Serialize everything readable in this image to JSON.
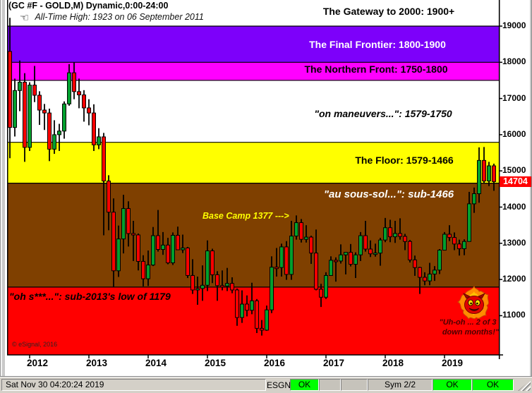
{
  "window": {
    "title": "(GC #F - GOLD,M) Dynamic,0:00-24:00",
    "subtitle": "All-Time High:  1923 on 06 September 2011",
    "subtitle_icon": "pointing-hand-left-icon"
  },
  "zones": [
    {
      "id": "gateway",
      "label": "The Gateway to 2000:  1900+",
      "price_from": 1900,
      "price_to": null,
      "bg": "#FFFFFF",
      "text_color": "#000000"
    },
    {
      "id": "final-frontier",
      "label": "The Final Frontier:  1800-1900",
      "price_from": 1800,
      "price_to": 1900,
      "bg": "#7D00FA",
      "text_color": "#FFFFFF"
    },
    {
      "id": "northern-front",
      "label": "The Northern Front:  1750-1800",
      "price_from": 1750,
      "price_to": 1800,
      "bg": "#FF00FF",
      "text_color": "#000000"
    },
    {
      "id": "maneuvers",
      "label": "\"on maneuvers...\":  1579-1750",
      "price_from": 1579,
      "price_to": 1750,
      "bg": "#FFFFFF",
      "text_color": "#000000"
    },
    {
      "id": "floor",
      "label": "The Floor:  1579-1466",
      "price_from": 1466,
      "price_to": 1579,
      "bg": "#FFFF00",
      "text_color": "#000000"
    },
    {
      "id": "sous-sol",
      "label": "\"au sous-sol...\":  sub-1466",
      "price_from": 1179,
      "price_to": 1466,
      "bg": "#7F4000",
      "text_color": "#FFFFFF"
    },
    {
      "id": "oh-s",
      "label": "\"oh s***...\":  sub-2013's low of 1179",
      "price_from": null,
      "price_to": 1179,
      "bg": "#FF0000",
      "text_color": "#000000"
    }
  ],
  "annotations": {
    "base_camp": "Base Camp 1377 --->",
    "copyright": "© eSignal, 2016",
    "uh_oh_line1": "\"Uh-oh ... 2 of 3",
    "uh_oh_line2": "down months!\"",
    "last_price": "14704"
  },
  "y_axis": {
    "ticks": [
      19000,
      18000,
      17000,
      16000,
      15000,
      14000,
      13000,
      12000,
      11000
    ]
  },
  "x_axis": {
    "years": [
      "2012",
      "2013",
      "2014",
      "2015",
      "2016",
      "2017",
      "2018",
      "2019"
    ]
  },
  "status_bar": {
    "timestamp": "Sat Nov 30 04:20:24 2019",
    "feed_label": "ESGNL:",
    "feed_status": "OK",
    "sym": "Sym 2/2",
    "status2": "OK",
    "status3": "OK",
    "ok_color": "#00FF00"
  },
  "chart_data": {
    "type": "candlestick",
    "title": "(GC #F - GOLD,M) Dynamic,0:00-24:00",
    "symbol": "GC #F GOLD, monthly",
    "price_scale_factor": 10,
    "ylim": [
      990,
      1972
    ],
    "y_tick_labels": [
      19000,
      18000,
      17000,
      16000,
      15000,
      14000,
      13000,
      12000,
      11000
    ],
    "x_tick_labels": [
      "2012",
      "2013",
      "2014",
      "2015",
      "2016",
      "2017",
      "2018",
      "2019"
    ],
    "up_color": "#00A02E",
    "down_color": "#FF0000",
    "last_price": 1470.4,
    "candles": [
      [
        "2011-09",
        1830,
        1923,
        1535,
        1620
      ],
      [
        "2011-10",
        1620,
        1755,
        1595,
        1722
      ],
      [
        "2011-11",
        1722,
        1805,
        1665,
        1745
      ],
      [
        "2011-12",
        1745,
        1770,
        1525,
        1565
      ],
      [
        "2012-01",
        1565,
        1745,
        1555,
        1737
      ],
      [
        "2012-02",
        1737,
        1790,
        1690,
        1709
      ],
      [
        "2012-03",
        1709,
        1720,
        1627,
        1668
      ],
      [
        "2012-04",
        1668,
        1685,
        1613,
        1660
      ],
      [
        "2012-05",
        1660,
        1672,
        1527,
        1560
      ],
      [
        "2012-06",
        1560,
        1640,
        1547,
        1600
      ],
      [
        "2012-07",
        1600,
        1630,
        1555,
        1610
      ],
      [
        "2012-08",
        1610,
        1692,
        1589,
        1685
      ],
      [
        "2012-09",
        1685,
        1795,
        1680,
        1771
      ],
      [
        "2012-10",
        1771,
        1800,
        1698,
        1719
      ],
      [
        "2012-11",
        1719,
        1755,
        1673,
        1710
      ],
      [
        "2012-12",
        1710,
        1723,
        1636,
        1674
      ],
      [
        "2013-01",
        1674,
        1698,
        1626,
        1660
      ],
      [
        "2013-02",
        1660,
        1684,
        1555,
        1572
      ],
      [
        "2013-03",
        1572,
        1618,
        1560,
        1594
      ],
      [
        "2013-04",
        1594,
        1605,
        1322,
        1472
      ],
      [
        "2013-05",
        1472,
        1488,
        1336,
        1386
      ],
      [
        "2013-06",
        1386,
        1424,
        1179,
        1224
      ],
      [
        "2013-07",
        1224,
        1349,
        1207,
        1312
      ],
      [
        "2013-08",
        1312,
        1434,
        1272,
        1396
      ],
      [
        "2013-09",
        1396,
        1416,
        1291,
        1327
      ],
      [
        "2013-10",
        1327,
        1362,
        1251,
        1323
      ],
      [
        "2013-11",
        1323,
        1327,
        1225,
        1250
      ],
      [
        "2013-12",
        1250,
        1267,
        1181,
        1202
      ],
      [
        "2014-01",
        1202,
        1280,
        1182,
        1240
      ],
      [
        "2014-02",
        1240,
        1345,
        1237,
        1321
      ],
      [
        "2014-03",
        1321,
        1392,
        1277,
        1283
      ],
      [
        "2014-04",
        1283,
        1331,
        1268,
        1295
      ],
      [
        "2014-05",
        1295,
        1315,
        1242,
        1246
      ],
      [
        "2014-06",
        1246,
        1330,
        1240,
        1322
      ],
      [
        "2014-07",
        1322,
        1346,
        1281,
        1282
      ],
      [
        "2014-08",
        1282,
        1324,
        1273,
        1287
      ],
      [
        "2014-09",
        1287,
        1290,
        1204,
        1211
      ],
      [
        "2014-10",
        1211,
        1256,
        1160,
        1171
      ],
      [
        "2014-11",
        1171,
        1208,
        1130,
        1175
      ],
      [
        "2014-12",
        1175,
        1239,
        1141,
        1184
      ],
      [
        "2015-01",
        1184,
        1308,
        1168,
        1279
      ],
      [
        "2015-02",
        1279,
        1285,
        1190,
        1213
      ],
      [
        "2015-03",
        1213,
        1223,
        1141,
        1183
      ],
      [
        "2015-04",
        1183,
        1225,
        1170,
        1182
      ],
      [
        "2015-05",
        1182,
        1232,
        1168,
        1189
      ],
      [
        "2015-06",
        1189,
        1206,
        1162,
        1171
      ],
      [
        "2015-07",
        1171,
        1175,
        1072,
        1095
      ],
      [
        "2015-08",
        1095,
        1170,
        1080,
        1132
      ],
      [
        "2015-09",
        1132,
        1156,
        1098,
        1115
      ],
      [
        "2015-10",
        1115,
        1191,
        1104,
        1141
      ],
      [
        "2015-11",
        1141,
        1146,
        1052,
        1065
      ],
      [
        "2015-12",
        1065,
        1088,
        1045,
        1060
      ],
      [
        "2016-01",
        1060,
        1128,
        1058,
        1116
      ],
      [
        "2016-02",
        1116,
        1264,
        1107,
        1234
      ],
      [
        "2016-03",
        1234,
        1287,
        1208,
        1233
      ],
      [
        "2016-04",
        1233,
        1299,
        1208,
        1290
      ],
      [
        "2016-05",
        1290,
        1306,
        1199,
        1214
      ],
      [
        "2016-06",
        1214,
        1362,
        1199,
        1320
      ],
      [
        "2016-07",
        1320,
        1377,
        1310,
        1357
      ],
      [
        "2016-08",
        1357,
        1367,
        1302,
        1311
      ],
      [
        "2016-09",
        1311,
        1350,
        1302,
        1317
      ],
      [
        "2016-10",
        1317,
        1321,
        1243,
        1273
      ],
      [
        "2016-11",
        1273,
        1338,
        1170,
        1173
      ],
      [
        "2016-12",
        1173,
        1188,
        1124,
        1151
      ],
      [
        "2017-01",
        1151,
        1220,
        1146,
        1211
      ],
      [
        "2017-02",
        1211,
        1264,
        1210,
        1253
      ],
      [
        "2017-03",
        1253,
        1261,
        1194,
        1251
      ],
      [
        "2017-04",
        1251,
        1297,
        1244,
        1268
      ],
      [
        "2017-05",
        1268,
        1273,
        1214,
        1275
      ],
      [
        "2017-06",
        1275,
        1298,
        1236,
        1242
      ],
      [
        "2017-07",
        1242,
        1275,
        1204,
        1268
      ],
      [
        "2017-08",
        1268,
        1331,
        1251,
        1321
      ],
      [
        "2017-09",
        1321,
        1362,
        1277,
        1284
      ],
      [
        "2017-10",
        1284,
        1308,
        1262,
        1271
      ],
      [
        "2017-11",
        1271,
        1299,
        1263,
        1273
      ],
      [
        "2017-12",
        1273,
        1315,
        1238,
        1309
      ],
      [
        "2018-01",
        1309,
        1370,
        1303,
        1343
      ],
      [
        "2018-02",
        1343,
        1365,
        1303,
        1318
      ],
      [
        "2018-03",
        1318,
        1362,
        1301,
        1327
      ],
      [
        "2018-04",
        1327,
        1369,
        1310,
        1319
      ],
      [
        "2018-05",
        1319,
        1326,
        1281,
        1305
      ],
      [
        "2018-06",
        1305,
        1309,
        1247,
        1254
      ],
      [
        "2018-07",
        1254,
        1266,
        1210,
        1233
      ],
      [
        "2018-08",
        1233,
        1235,
        1160,
        1206
      ],
      [
        "2018-09",
        1206,
        1220,
        1184,
        1196
      ],
      [
        "2018-10",
        1196,
        1246,
        1184,
        1215
      ],
      [
        "2018-11",
        1215,
        1237,
        1196,
        1226
      ],
      [
        "2018-12",
        1226,
        1284,
        1215,
        1281
      ],
      [
        "2019-01",
        1281,
        1331,
        1281,
        1325
      ],
      [
        "2019-02",
        1325,
        1350,
        1306,
        1316
      ],
      [
        "2019-03",
        1316,
        1330,
        1281,
        1298
      ],
      [
        "2019-04",
        1298,
        1310,
        1266,
        1285
      ],
      [
        "2019-05",
        1285,
        1311,
        1267,
        1305
      ],
      [
        "2019-06",
        1305,
        1442,
        1305,
        1409
      ],
      [
        "2019-07",
        1409,
        1454,
        1384,
        1437
      ],
      [
        "2019-08",
        1437,
        1565,
        1412,
        1529
      ],
      [
        "2019-09",
        1529,
        1566,
        1465,
        1472
      ],
      [
        "2019-10",
        1472,
        1525,
        1458,
        1514
      ],
      [
        "2019-11",
        1514,
        1520,
        1445,
        1470.4
      ]
    ]
  }
}
